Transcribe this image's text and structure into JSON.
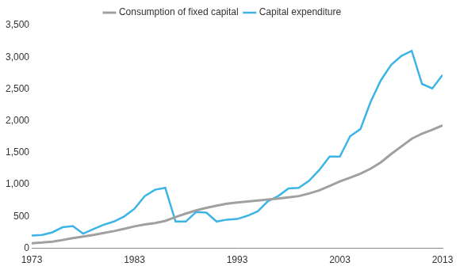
{
  "chart_data": {
    "type": "line",
    "x": [
      1973,
      1974,
      1975,
      1976,
      1977,
      1978,
      1979,
      1980,
      1981,
      1982,
      1983,
      1984,
      1985,
      1986,
      1987,
      1988,
      1989,
      1990,
      1991,
      1992,
      1993,
      1994,
      1995,
      1996,
      1997,
      1998,
      1999,
      2000,
      2001,
      2002,
      2003,
      2004,
      2005,
      2006,
      2007,
      2008,
      2009,
      2010,
      2011,
      2012,
      2013
    ],
    "series": [
      {
        "name": "Consumption of fixed capital",
        "color": "#a0a0a0",
        "values": [
          80,
          90,
          105,
          130,
          160,
          185,
          210,
          240,
          270,
          305,
          345,
          375,
          395,
          430,
          490,
          545,
          595,
          635,
          670,
          700,
          720,
          735,
          750,
          765,
          780,
          800,
          820,
          860,
          910,
          980,
          1050,
          1110,
          1170,
          1250,
          1350,
          1480,
          1600,
          1720,
          1800,
          1860,
          1930
        ]
      },
      {
        "name": "Capital expenditure",
        "color": "#3cb4e6",
        "values": [
          200,
          210,
          250,
          330,
          350,
          230,
          300,
          370,
          420,
          500,
          620,
          820,
          920,
          950,
          420,
          420,
          570,
          560,
          420,
          450,
          460,
          510,
          580,
          740,
          820,
          940,
          950,
          1060,
          1230,
          1440,
          1440,
          1760,
          1870,
          2300,
          2640,
          2880,
          3020,
          3100,
          2580,
          2510,
          2720
        ]
      }
    ],
    "xlim": [
      1973,
      2013
    ],
    "xticks": [
      1973,
      1983,
      1993,
      2003,
      2013
    ],
    "ylim": [
      0,
      3500
    ],
    "yticks": [
      0,
      500,
      {
        "value": 1000,
        "label": "1,000"
      },
      {
        "value": 1500,
        "label": "1,500"
      },
      {
        "value": 2000,
        "label": "2,000"
      },
      {
        "value": 2500,
        "label": "2,500"
      },
      {
        "value": 3000,
        "label": "3,000"
      },
      {
        "value": 3500,
        "label": "3,500"
      }
    ],
    "grid": false,
    "legend": "top"
  }
}
